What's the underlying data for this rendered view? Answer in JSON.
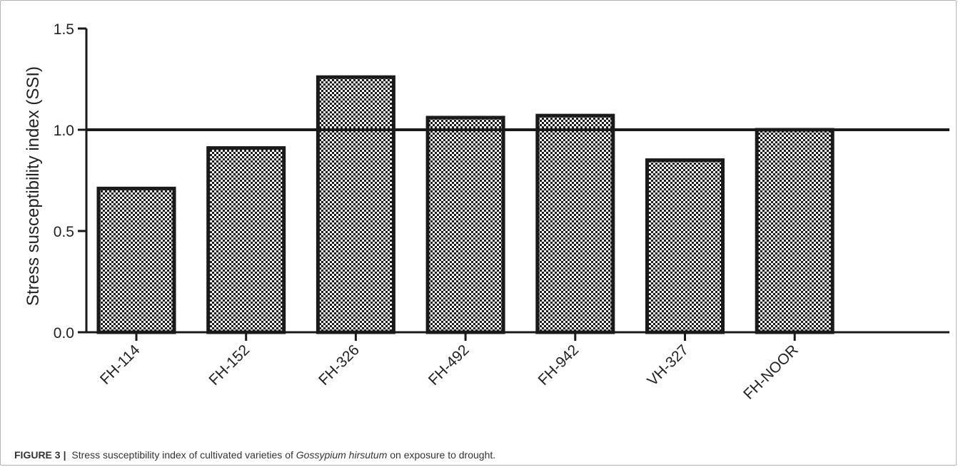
{
  "chart_data": {
    "type": "bar",
    "categories": [
      "FH-114",
      "FH-152",
      "FH-326",
      "FH-492",
      "FH-942",
      "VH-327",
      "FH-NOOR"
    ],
    "values": [
      0.71,
      0.91,
      1.26,
      1.06,
      1.07,
      0.85,
      1.0
    ],
    "title": "",
    "xlabel": "",
    "ylabel": "Stress susceptibility index (SSI)",
    "ylim": [
      0,
      1.5
    ],
    "yticks": [
      "0.0",
      "0.5",
      "1.0",
      "1.5"
    ],
    "reference_line": 1.0,
    "bar_fill": "checkered",
    "grid": false,
    "legend": "none"
  },
  "caption": {
    "label": "FIGURE 3",
    "separator": "|",
    "text_before": "Stress susceptibility index of cultivated varieties of",
    "species": "Gossypium hirsutum",
    "text_after": "on exposure to drought."
  },
  "colors": {
    "bar_stroke": "#1a1a1a",
    "checker_dark": "#1a1a1a",
    "checker_light": "#ffffff",
    "axis": "#1a1a1a"
  }
}
